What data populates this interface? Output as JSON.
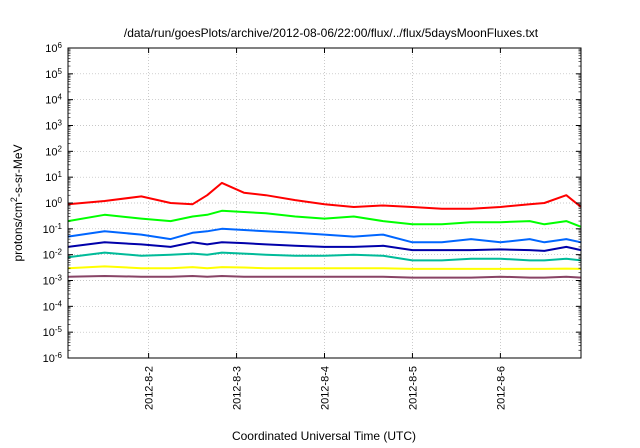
{
  "chart_data": {
    "type": "line",
    "title": "/data/run/goesPlots/archive/2012-08-06/22:00/flux/../flux/5daysMoonFluxes.txt",
    "xlabel": "Coordinated Universal Time (UTC)",
    "ylabel_parts": [
      "protons/cm",
      "2",
      "-s-sr-MeV"
    ],
    "yscale": "log",
    "ylim_exp": [
      -6,
      6
    ],
    "yticks": [
      {
        "base": "10",
        "exp": "-6"
      },
      {
        "base": "10",
        "exp": "-5"
      },
      {
        "base": "10",
        "exp": "-4"
      },
      {
        "base": "10",
        "exp": "-3"
      },
      {
        "base": "10",
        "exp": "-2"
      },
      {
        "base": "10",
        "exp": "-1"
      },
      {
        "base": "10",
        "exp": "0"
      },
      {
        "base": "10",
        "exp": "1"
      },
      {
        "base": "10",
        "exp": "2"
      },
      {
        "base": "10",
        "exp": "3"
      },
      {
        "base": "10",
        "exp": "4"
      },
      {
        "base": "10",
        "exp": "5"
      },
      {
        "base": "10",
        "exp": "6"
      }
    ],
    "xlim": [
      "2012-08-01T02:00",
      "2012-08-06T22:00"
    ],
    "xticks": [
      {
        "label": "2012-8-2",
        "date": "2012-08-02"
      },
      {
        "label": "2012-8-3",
        "date": "2012-08-03"
      },
      {
        "label": "2012-8-4",
        "date": "2012-08-04"
      },
      {
        "label": "2012-8-5",
        "date": "2012-08-05"
      },
      {
        "label": "2012-8-6",
        "date": "2012-08-06"
      }
    ],
    "grid": true,
    "x_dates": [
      "2012-08-01T02:00",
      "2012-08-01T12:00",
      "2012-08-01T22:00",
      "2012-08-02T06:00",
      "2012-08-02T12:00",
      "2012-08-02T16:00",
      "2012-08-02T20:00",
      "2012-08-03T02:00",
      "2012-08-03T08:00",
      "2012-08-03T16:00",
      "2012-08-04T00:00",
      "2012-08-04T08:00",
      "2012-08-04T16:00",
      "2012-08-05T00:00",
      "2012-08-05T08:00",
      "2012-08-05T16:00",
      "2012-08-06T00:00",
      "2012-08-06T08:00",
      "2012-08-06T12:00",
      "2012-08-06T18:00",
      "2012-08-06T22:00"
    ],
    "series": [
      {
        "color": "#ff0000",
        "values": [
          0.9,
          1.2,
          1.8,
          1.0,
          0.9,
          2.0,
          6.0,
          2.5,
          2.0,
          1.3,
          0.9,
          0.7,
          0.8,
          0.7,
          0.6,
          0.6,
          0.7,
          0.9,
          1.0,
          2.0,
          0.7
        ]
      },
      {
        "color": "#00ff00",
        "values": [
          0.2,
          0.35,
          0.25,
          0.2,
          0.3,
          0.35,
          0.5,
          0.45,
          0.4,
          0.3,
          0.25,
          0.3,
          0.2,
          0.15,
          0.15,
          0.18,
          0.18,
          0.2,
          0.15,
          0.2,
          0.12
        ]
      },
      {
        "color": "#0066ff",
        "values": [
          0.05,
          0.08,
          0.06,
          0.04,
          0.07,
          0.08,
          0.1,
          0.09,
          0.08,
          0.07,
          0.06,
          0.05,
          0.06,
          0.03,
          0.03,
          0.04,
          0.03,
          0.04,
          0.03,
          0.04,
          0.03
        ]
      },
      {
        "color": "#0000aa",
        "values": [
          0.02,
          0.03,
          0.025,
          0.02,
          0.03,
          0.025,
          0.03,
          0.028,
          0.025,
          0.022,
          0.02,
          0.02,
          0.022,
          0.015,
          0.015,
          0.015,
          0.016,
          0.015,
          0.014,
          0.02,
          0.015
        ]
      },
      {
        "color": "#00bb99",
        "values": [
          0.008,
          0.012,
          0.009,
          0.01,
          0.011,
          0.01,
          0.012,
          0.011,
          0.01,
          0.009,
          0.009,
          0.01,
          0.009,
          0.006,
          0.006,
          0.007,
          0.007,
          0.006,
          0.006,
          0.007,
          0.006
        ]
      },
      {
        "color": "#ffff00",
        "values": [
          0.003,
          0.0035,
          0.003,
          0.003,
          0.0033,
          0.003,
          0.0033,
          0.0032,
          0.003,
          0.003,
          0.003,
          0.003,
          0.003,
          0.0028,
          0.0028,
          0.0028,
          0.0028,
          0.0028,
          0.0028,
          0.0029,
          0.0028
        ]
      },
      {
        "color": "#884466",
        "values": [
          0.0014,
          0.0015,
          0.0014,
          0.0014,
          0.0015,
          0.0014,
          0.0015,
          0.0014,
          0.0014,
          0.0014,
          0.0014,
          0.0014,
          0.0014,
          0.0013,
          0.0013,
          0.0013,
          0.0014,
          0.0013,
          0.0013,
          0.0014,
          0.0013
        ]
      }
    ]
  }
}
